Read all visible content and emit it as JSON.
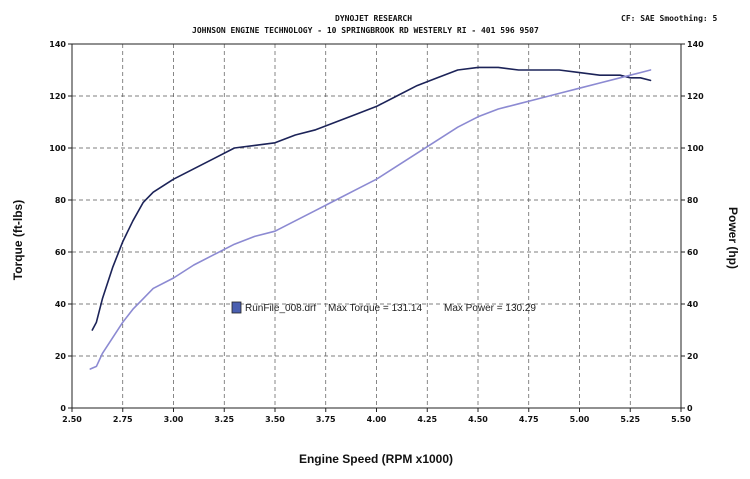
{
  "header": {
    "title": "DYNOJET RESEARCH",
    "subtitle": "JOHNSON ENGINE TECHNOLOGY - 10 SPRINGBROOK RD WESTERLY RI - 401 596 9507",
    "settings": "CF: SAE  Smoothing: 5"
  },
  "legend": {
    "swatch_color": "#4a5fb0",
    "run_file": "RunFile_008.drf",
    "max_torque_text": "Max Torque = 131.14",
    "max_power_text": "Max Power = 130.29"
  },
  "chart_data": {
    "type": "line",
    "xlabel": "Engine Speed (RPM x1000)",
    "ylabel": "Torque (ft-lbs)",
    "y2label": "Power (hp)",
    "xlim": [
      2.5,
      5.5
    ],
    "ylim": [
      0,
      140
    ],
    "y2lim": [
      0,
      140
    ],
    "x_ticks": [
      "2.50",
      "2.75",
      "3.00",
      "3.25",
      "3.50",
      "3.75",
      "4.00",
      "4.25",
      "4.50",
      "4.75",
      "5.00",
      "5.25",
      "5.50"
    ],
    "y_ticks": [
      "0",
      "20",
      "40",
      "60",
      "80",
      "100",
      "120",
      "140"
    ],
    "y2_ticks": [
      "0",
      "20",
      "40",
      "60",
      "80",
      "100",
      "120",
      "140"
    ],
    "grid": true,
    "series": [
      {
        "name": "Torque",
        "axis": "left",
        "color": "#1c2358",
        "x": [
          2.6,
          2.62,
          2.65,
          2.7,
          2.75,
          2.8,
          2.85,
          2.9,
          3.0,
          3.1,
          3.2,
          3.3,
          3.4,
          3.5,
          3.6,
          3.7,
          3.8,
          3.9,
          4.0,
          4.1,
          4.2,
          4.3,
          4.4,
          4.5,
          4.6,
          4.7,
          4.8,
          4.9,
          5.0,
          5.1,
          5.2,
          5.25,
          5.3,
          5.35
        ],
        "y": [
          30,
          33,
          42,
          54,
          64,
          72,
          79,
          83,
          88,
          92,
          96,
          100,
          101,
          102,
          105,
          107,
          110,
          113,
          116,
          120,
          124,
          127,
          130,
          131,
          131,
          130,
          130,
          130,
          129,
          128,
          128,
          127,
          127,
          126
        ]
      },
      {
        "name": "Power",
        "axis": "right",
        "color": "#8c8ad2",
        "x": [
          2.59,
          2.62,
          2.65,
          2.7,
          2.75,
          2.8,
          2.85,
          2.9,
          3.0,
          3.1,
          3.2,
          3.3,
          3.4,
          3.5,
          3.6,
          3.7,
          3.8,
          3.9,
          4.0,
          4.1,
          4.2,
          4.3,
          4.4,
          4.5,
          4.6,
          4.7,
          4.8,
          4.9,
          5.0,
          5.1,
          5.2,
          5.25,
          5.3,
          5.35
        ],
        "y": [
          15,
          16,
          21,
          27,
          33,
          38,
          42,
          46,
          50,
          55,
          59,
          63,
          66,
          68,
          72,
          76,
          80,
          84,
          88,
          93,
          98,
          103,
          108,
          112,
          115,
          117,
          119,
          121,
          123,
          125,
          127,
          128,
          129,
          130
        ]
      }
    ]
  }
}
